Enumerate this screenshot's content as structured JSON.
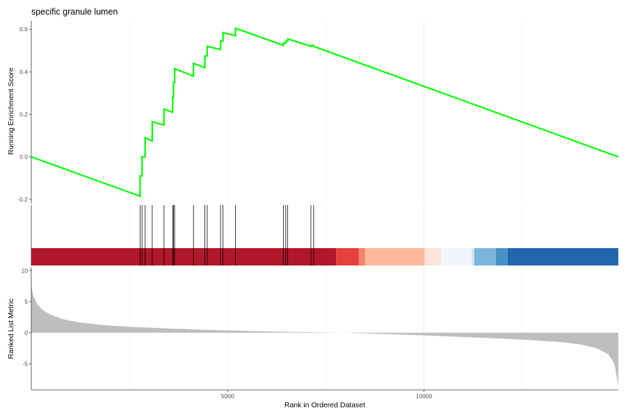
{
  "chart_data": {
    "type": "line",
    "title": "specific granule lumen",
    "xlabel": "Rank in Ordered Dataset",
    "xlim": [
      0,
      14950
    ],
    "x_ticks": [
      "5000",
      "10000"
    ],
    "x_tick_values": [
      5000,
      10000
    ],
    "grid": true,
    "colors": {
      "es_line": "#00ff00",
      "hit_tick": "#000000",
      "metric_fill": "#bebebe"
    },
    "running_enrichment": {
      "ylabel": "Running Enrichment Score",
      "ylim": [
        -0.22,
        0.64
      ],
      "y_ticks": [
        "-0.2",
        "0.0",
        "0.2",
        "0.4",
        "0.6"
      ],
      "y_tick_values": [
        -0.2,
        0.0,
        0.2,
        0.4,
        0.6
      ],
      "x": [
        0,
        2770,
        2770,
        2820,
        2820,
        2900,
        2900,
        3080,
        3080,
        3380,
        3380,
        3600,
        3600,
        3620,
        3620,
        3650,
        3650,
        4130,
        4130,
        4420,
        4420,
        4480,
        4480,
        4820,
        4820,
        4880,
        4880,
        5200,
        5200,
        6420,
        6420,
        6480,
        6480,
        6530,
        6530,
        7120,
        7120,
        7190,
        7190,
        14950
      ],
      "y": [
        0.0,
        -0.185,
        -0.09,
        -0.09,
        0.0,
        0.0,
        0.09,
        0.075,
        0.165,
        0.15,
        0.225,
        0.21,
        0.28,
        0.28,
        0.35,
        0.35,
        0.415,
        0.38,
        0.44,
        0.42,
        0.475,
        0.475,
        0.52,
        0.505,
        0.545,
        0.545,
        0.585,
        0.57,
        0.605,
        0.525,
        0.535,
        0.535,
        0.545,
        0.545,
        0.555,
        0.52,
        0.525,
        0.525,
        0.52,
        0.0
      ]
    },
    "gene_hits": [
      2770,
      2820,
      2900,
      3080,
      3380,
      3600,
      3620,
      3650,
      4130,
      4420,
      4480,
      4820,
      4880,
      5200,
      6420,
      6480,
      6530,
      7120,
      7190
    ],
    "ranked_list_metric": {
      "ylabel": "Ranked List Metric",
      "ylim": [
        -9.2,
        10.5
      ],
      "y_ticks": [
        "-5",
        "0",
        "5",
        "10"
      ],
      "y_tick_values": [
        -5,
        0,
        5,
        10
      ],
      "x": [
        0,
        50,
        150,
        300,
        500,
        800,
        1200,
        1800,
        2500,
        3500,
        4500,
        5500,
        6500,
        7500,
        8000,
        8500,
        9500,
        10500,
        11500,
        12500,
        13500,
        14000,
        14400,
        14700,
        14850,
        14950
      ],
      "y": [
        7.6,
        6.0,
        4.6,
        3.6,
        2.9,
        2.2,
        1.7,
        1.25,
        0.95,
        0.7,
        0.45,
        0.3,
        0.15,
        0.05,
        0.0,
        -0.1,
        -0.3,
        -0.55,
        -0.8,
        -1.1,
        -1.5,
        -1.9,
        -2.5,
        -3.5,
        -5.0,
        -8.6
      ]
    },
    "heatmap_bands": [
      {
        "from": 0,
        "to": 7760,
        "color": "#b2182b"
      },
      {
        "from": 7760,
        "to": 8340,
        "color": "#e6403d"
      },
      {
        "from": 8340,
        "to": 8500,
        "color": "#f4836c"
      },
      {
        "from": 8500,
        "to": 10020,
        "color": "#fdb89c"
      },
      {
        "from": 10020,
        "to": 10440,
        "color": "#fde3da"
      },
      {
        "from": 10440,
        "to": 11220,
        "color": "#f1f5fc"
      },
      {
        "from": 11220,
        "to": 11280,
        "color": "#d1e5f0"
      },
      {
        "from": 11280,
        "to": 11830,
        "color": "#7bb5da"
      },
      {
        "from": 11830,
        "to": 12130,
        "color": "#4593c6"
      },
      {
        "from": 12130,
        "to": 14950,
        "color": "#2166ac"
      }
    ]
  }
}
